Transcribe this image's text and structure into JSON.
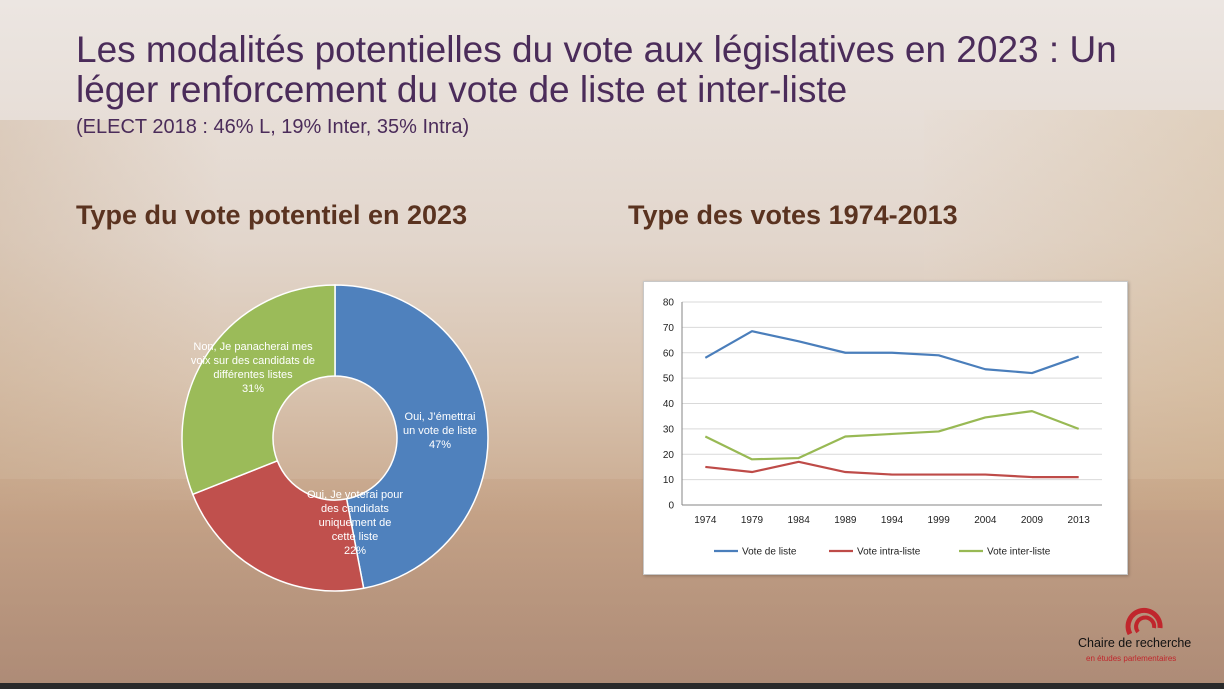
{
  "slide": {
    "title": "Les modalités potentielles du vote aux législatives en 2023 : Un léger renforcement du vote de liste et inter-liste",
    "subtitle": "(ELECT 2018 : 46% L, 19% Inter, 35% Intra)",
    "left_heading": "Type du vote potentiel en 2023",
    "right_heading": "Type des votes 1974-2013",
    "logo": {
      "name": "Chaire de recherche",
      "sub": "en études parlementaires",
      "icon": "chamber-arc-icon",
      "accent": "#c0262c"
    }
  },
  "chart_data": [
    {
      "type": "pie",
      "variant": "donut",
      "title": "Type du vote potentiel en 2023",
      "slices": [
        {
          "label": "Oui, J’émettrai un vote de liste",
          "label_lines": [
            "Oui, J’émettrai",
            "un vote de liste"
          ],
          "value": 47,
          "value_label": "47%",
          "color": "#4f81bd"
        },
        {
          "label": "Oui, Je voterai pour des candidats uniquement de cette liste",
          "label_lines": [
            "Oui, Je voterai pour",
            "des candidats",
            "uniquement de",
            "cette liste"
          ],
          "value": 22,
          "value_label": "22%",
          "color": "#c0504d"
        },
        {
          "label": "Non, Je panacherai mes voix sur des candidats de différentes listes",
          "label_lines": [
            "Non, Je panacherai mes",
            "voix sur des candidats de",
            "différentes listes"
          ],
          "value": 31,
          "value_label": "31%",
          "color": "#9bbb59"
        }
      ]
    },
    {
      "type": "line",
      "title": "Type des votes 1974-2013",
      "categories": [
        "1974",
        "1979",
        "1984",
        "1989",
        "1994",
        "1999",
        "2004",
        "2009",
        "2013"
      ],
      "ylim": [
        0,
        80
      ],
      "yticks": [
        0,
        10,
        20,
        30,
        40,
        50,
        60,
        70,
        80
      ],
      "grid": "horizontal",
      "legend": "bottom",
      "series": [
        {
          "name": "Vote de liste",
          "color": "#4a7ebb",
          "values": [
            58,
            68.5,
            64.5,
            60,
            60,
            59,
            53.5,
            52,
            58.5
          ]
        },
        {
          "name": "Vote intra-liste",
          "color": "#be4b48",
          "values": [
            15,
            13,
            17,
            13,
            12,
            12,
            12,
            11,
            11
          ]
        },
        {
          "name": "Vote inter-liste",
          "color": "#98b954",
          "values": [
            27,
            18,
            18.5,
            27,
            28,
            29,
            34.5,
            37,
            30
          ]
        }
      ]
    }
  ]
}
